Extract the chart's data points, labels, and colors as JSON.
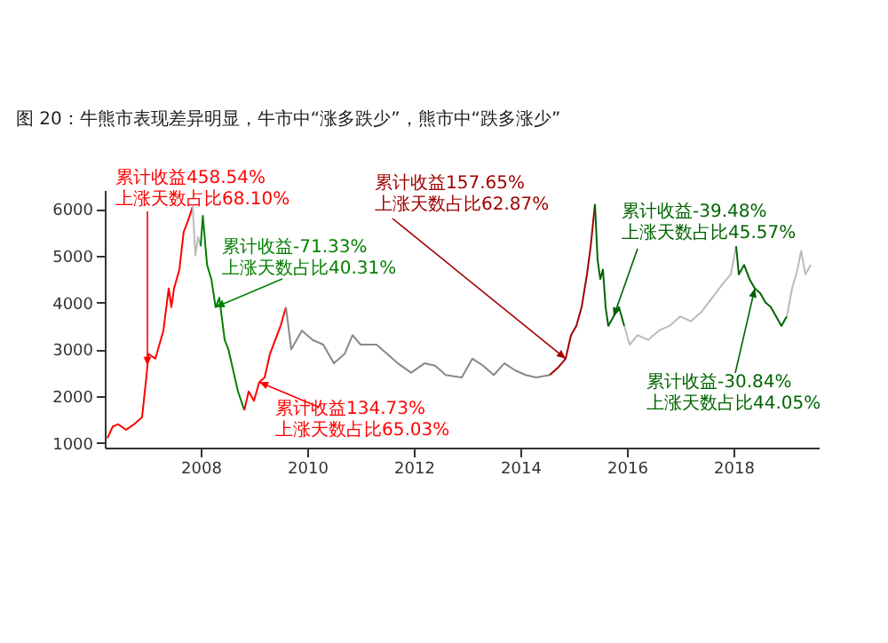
{
  "chart_data": {
    "type": "line",
    "title": "图 20：牛熊市表现差异明显，牛市中“涨多跌少”，熊市中“跌多涨少”",
    "xlim": [
      2006.2,
      2019.6
    ],
    "xticks": [
      2008,
      2010,
      2012,
      2014,
      2016,
      2018
    ],
    "ylim": [
      900,
      6400
    ],
    "yticks": [
      1000,
      2000,
      3000,
      4000,
      5000,
      6000
    ],
    "grid": false,
    "series": [
      {
        "color": "#ff0000",
        "x": [
          2006.25,
          2006.35,
          2006.45,
          2006.6,
          2006.75,
          2006.9,
          2006.98,
          2007.02,
          2007.15,
          2007.3,
          2007.4,
          2007.45,
          2007.5,
          2007.6,
          2007.68,
          2007.78,
          2007.85
        ],
        "values": [
          1100,
          1350,
          1400,
          1280,
          1400,
          1550,
          2400,
          2900,
          2800,
          3400,
          4300,
          3900,
          4300,
          4700,
          5500,
          5800,
          6050
        ]
      },
      {
        "color": "#bbbbbb",
        "x": [
          2007.85,
          2007.9,
          2007.95,
          2008.0
        ],
        "values": [
          6050,
          5000,
          5400,
          5200
        ]
      },
      {
        "color": "#008000",
        "x": [
          2008.0,
          2008.04,
          2008.12,
          2008.2,
          2008.28,
          2008.35,
          2008.45,
          2008.52,
          2008.6,
          2008.7,
          2008.82
        ],
        "values": [
          5200,
          5850,
          4800,
          4500,
          3900,
          4100,
          3200,
          3000,
          2600,
          2100,
          1700
        ]
      },
      {
        "color": "#ff0000",
        "x": [
          2008.82,
          2008.9,
          2009.0,
          2009.1,
          2009.2,
          2009.3,
          2009.4,
          2009.5,
          2009.6
        ],
        "values": [
          1700,
          2100,
          1900,
          2300,
          2400,
          2900,
          3200,
          3500,
          3900
        ]
      },
      {
        "color": "#888888",
        "x": [
          2009.6,
          2009.7,
          2009.9,
          2010.1,
          2010.3,
          2010.5,
          2010.7,
          2010.85,
          2011.0,
          2011.3,
          2011.5,
          2011.7,
          2011.95,
          2012.2,
          2012.4,
          2012.6,
          2012.9,
          2013.1,
          2013.3,
          2013.5,
          2013.7,
          2013.9,
          2014.1,
          2014.3,
          2014.55
        ],
        "values": [
          3900,
          3000,
          3400,
          3200,
          3100,
          2700,
          2900,
          3300,
          3100,
          3100,
          2900,
          2700,
          2500,
          2700,
          2650,
          2450,
          2400,
          2800,
          2650,
          2450,
          2700,
          2550,
          2450,
          2400,
          2450
        ]
      },
      {
        "color": "#a00000",
        "x": [
          2014.55,
          2014.7,
          2014.85,
          2014.95,
          2015.05,
          2015.15,
          2015.25,
          2015.32,
          2015.4
        ],
        "values": [
          2450,
          2600,
          2800,
          3300,
          3500,
          3900,
          4600,
          5200,
          6100
        ]
      },
      {
        "color": "#006400",
        "x": [
          2015.4,
          2015.45,
          2015.5,
          2015.55,
          2015.6,
          2015.65,
          2015.75,
          2015.85,
          2015.95
        ],
        "values": [
          6100,
          4900,
          4500,
          4700,
          3900,
          3500,
          3700,
          3900,
          3500
        ]
      },
      {
        "color": "#bbbbbb",
        "x": [
          2015.95,
          2016.05,
          2016.2,
          2016.4,
          2016.6,
          2016.8,
          2017.0,
          2017.2,
          2017.4,
          2017.6,
          2017.8,
          2017.95,
          2018.05
        ],
        "values": [
          3500,
          3100,
          3300,
          3200,
          3400,
          3500,
          3700,
          3600,
          3800,
          4100,
          4400,
          4600,
          5200
        ]
      },
      {
        "color": "#006400",
        "x": [
          2018.05,
          2018.1,
          2018.2,
          2018.3,
          2018.4,
          2018.5,
          2018.6,
          2018.7,
          2018.8,
          2018.9,
          2019.0
        ],
        "values": [
          5200,
          4600,
          4800,
          4500,
          4300,
          4200,
          4000,
          3900,
          3700,
          3500,
          3700
        ]
      },
      {
        "color": "#bbbbbb",
        "x": [
          2019.0,
          2019.1,
          2019.2,
          2019.27,
          2019.35,
          2019.45
        ],
        "values": [
          3700,
          4300,
          4700,
          5100,
          4600,
          4800
        ]
      }
    ],
    "annotations": [
      {
        "text": "累计收益458.54%\n上涨天数占比68.10%",
        "x": 2007.0,
        "y": 2650
      },
      {
        "text": "累计收益-71.33%\n上涨天数占比40.31%",
        "x": 2008.28,
        "y": 3900
      },
      {
        "text": "累计收益134.73%\n上涨天数占比65.03%",
        "x": 2009.1,
        "y": 2300
      },
      {
        "text": "累计收益157.65%\n上涨天数占比62.87%",
        "x": 2014.85,
        "y": 2800
      },
      {
        "text": "累计收益-39.48%\n上涨天数占比45.57%",
        "x": 2015.75,
        "y": 3700
      },
      {
        "text": "累计收益-30.84%\n上涨天数占比44.05%",
        "x": 2018.4,
        "y": 4300
      }
    ]
  }
}
